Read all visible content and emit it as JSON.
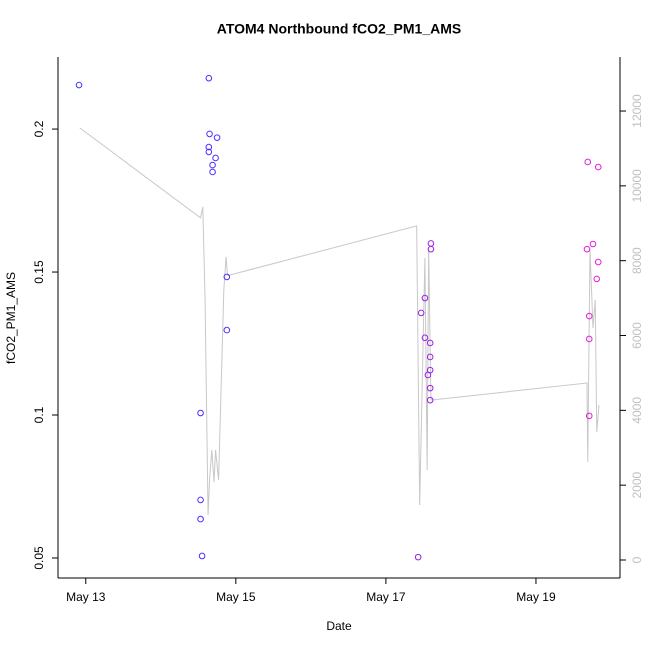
{
  "chart_data": {
    "type": "scatter",
    "title": "ATOM4 Northbound fCO2_PM1_AMS",
    "x_label": "Date",
    "y_label": "fCO2_PM1_AMS",
    "x": [
      12.91,
      14.64,
      14.65,
      14.64,
      14.64,
      14.75,
      14.73,
      14.69,
      14.69,
      14.53,
      14.53,
      14.53,
      14.55,
      14.88,
      14.88,
      17.43,
      17.47,
      17.52,
      17.52,
      17.59,
      17.6,
      17.6,
      17.59,
      17.59,
      17.56,
      17.59,
      17.59,
      19.69,
      19.83,
      19.68,
      19.76,
      19.83,
      19.81,
      19.71,
      19.71,
      19.71
    ],
    "values": [
      0.2154,
      0.2178,
      0.1983,
      0.1937,
      0.192,
      0.197,
      0.1899,
      0.1874,
      0.185,
      0.1007,
      0.0703,
      0.0636,
      0.0507,
      0.1483,
      0.1297,
      0.0503,
      0.1357,
      0.1409,
      0.127,
      0.1252,
      0.16,
      0.158,
      0.1203,
      0.1157,
      0.114,
      0.1094,
      0.1052,
      0.1885,
      0.1867,
      0.158,
      0.1598,
      0.1535,
      0.1476,
      0.1346,
      0.1266,
      0.0997
    ],
    "colors": [
      "#3a3aff",
      "#4a30ff",
      "#4a30ff",
      "#4a30ff",
      "#4a30ff",
      "#4c30ff",
      "#4c30ff",
      "#4a30ff",
      "#4a30ff",
      "#4830ff",
      "#4830ff",
      "#4830ff",
      "#4830ff",
      "#5030ff",
      "#5030ff",
      "#9a20e8",
      "#9a20e8",
      "#9c20e8",
      "#9c20e8",
      "#9e20e6",
      "#9e20e6",
      "#9e20e6",
      "#9e20e6",
      "#9e20e6",
      "#9c20e8",
      "#9e20e6",
      "#9e20e6",
      "#e020d8",
      "#e420d6",
      "#e020d8",
      "#e220d8",
      "#e420d6",
      "#e420d6",
      "#e020d8",
      "#e020d8",
      "#e020d8"
    ],
    "line": {
      "axis": "y2",
      "color": "#c8c8c8",
      "x": [
        12.92,
        14.53,
        14.56,
        14.59,
        14.63,
        14.65,
        14.68,
        14.71,
        14.73,
        14.77,
        14.84,
        14.87,
        14.89,
        17.41,
        17.45,
        17.52,
        17.55,
        17.57,
        17.6,
        17.63,
        19.68,
        19.69,
        19.72,
        19.76,
        19.79,
        19.81,
        19.84
      ],
      "values": [
        11550,
        9144,
        9440,
        6950,
        1200,
        2140,
        2940,
        2085,
        2940,
        2140,
        7220,
        8100,
        7600,
        8930,
        1470,
        8075,
        2400,
        8340,
        4280,
        4280,
        4730,
        2620,
        8290,
        6200,
        6950,
        3420,
        4140
      ]
    },
    "xlim": [
      12.63,
      20.12
    ],
    "xticks": [
      {
        "value": 13,
        "label": "May 13"
      },
      {
        "value": 15,
        "label": "May 15"
      },
      {
        "value": 17,
        "label": "May 17"
      },
      {
        "value": 19,
        "label": "May 19"
      }
    ],
    "ylim": [
      0.043,
      0.2252
    ],
    "yticks": [
      0.05,
      0.1,
      0.15,
      0.2
    ],
    "y2lim": [
      -481,
      13444
    ],
    "y2ticks": [
      0,
      2000,
      4000,
      6000,
      8000,
      10000,
      12000
    ]
  }
}
